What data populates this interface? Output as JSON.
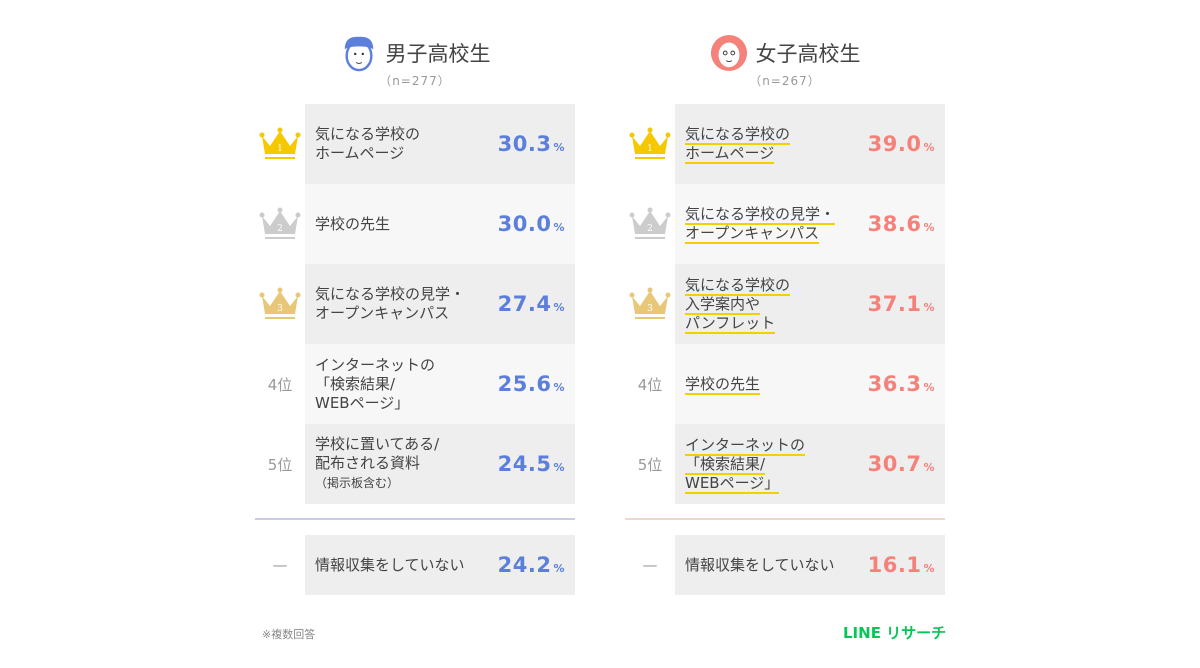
{
  "colors": {
    "boys": "#5b7fdb",
    "girls": "#f5827a",
    "gold": "#f5c800",
    "silver": "#cccccc",
    "bronze": "#e8c878",
    "underline": "#f5d000"
  },
  "rank_labels": [
    "1",
    "2",
    "3",
    "4位",
    "5位",
    "—"
  ],
  "chart_data": {
    "type": "table",
    "groups": [
      {
        "name": "男子高校生",
        "n": "（n=277）",
        "rows": [
          {
            "rank": "1",
            "label": "気になる学校の\nホームページ",
            "value": "30.3"
          },
          {
            "rank": "2",
            "label": "学校の先生",
            "value": "30.0"
          },
          {
            "rank": "3",
            "label": "気になる学校の見学・\nオープンキャンパス",
            "value": "27.4"
          },
          {
            "rank": "4位",
            "label": "インターネットの\n「検索結果/\nWEBページ」",
            "value": "25.6"
          },
          {
            "rank": "5位",
            "label": "学校に置いてある/\n配布される資料",
            "sub": "（掲示板含む）",
            "value": "24.5"
          }
        ],
        "none": {
          "rank": "—",
          "label": "情報収集をしていない",
          "value": "24.2"
        }
      },
      {
        "name": "女子高校生",
        "n": "（n=267）",
        "rows": [
          {
            "rank": "1",
            "label": "気になる学校の\nホームページ",
            "value": "39.0"
          },
          {
            "rank": "2",
            "label": "気になる学校の見学・\nオープンキャンパス",
            "value": "38.6"
          },
          {
            "rank": "3",
            "label": "気になる学校の\n入学案内や\nパンフレット",
            "value": "37.1"
          },
          {
            "rank": "4位",
            "label": "学校の先生",
            "value": "36.3"
          },
          {
            "rank": "5位",
            "label": "インターネットの\n「検索結果/\nWEBページ」",
            "value": "30.7"
          }
        ],
        "none": {
          "rank": "—",
          "label": "情報収集をしていない",
          "value": "16.1"
        }
      }
    ],
    "unit": "%"
  },
  "footer": {
    "note": "※複数回答",
    "logo": "LINE リサーチ"
  }
}
